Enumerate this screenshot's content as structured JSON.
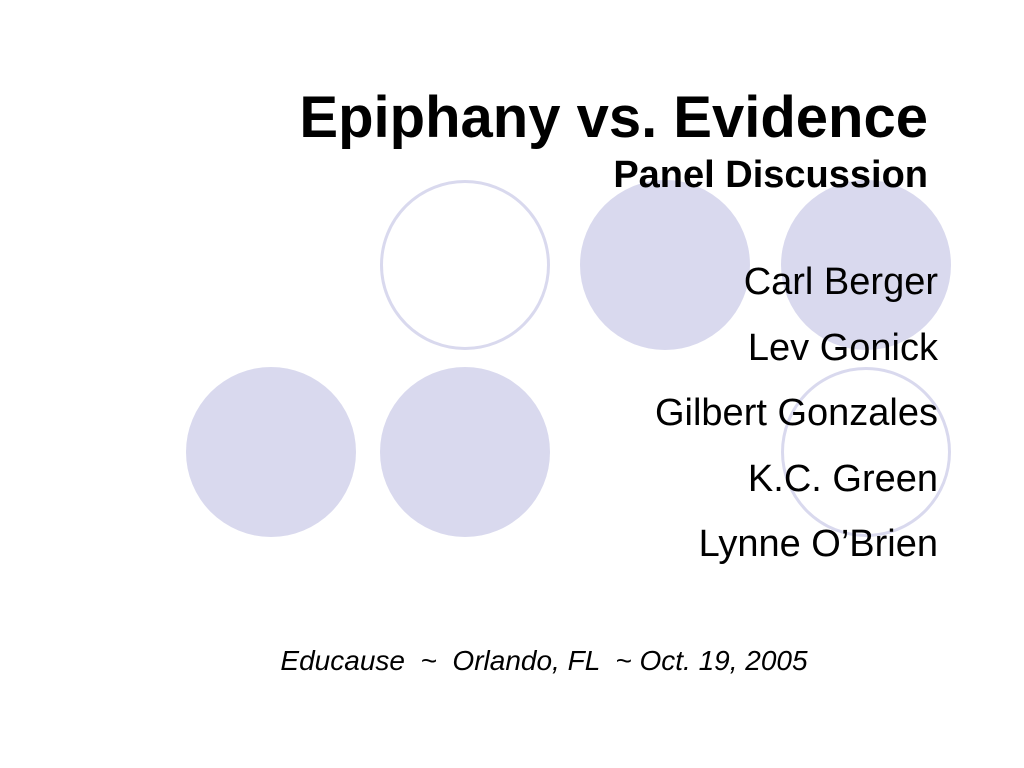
{
  "slide": {
    "title": "Epiphany vs. Evidence",
    "subtitle": "Panel Discussion",
    "panelists": [
      "Carl Berger",
      "Lev Gonick",
      "Gilbert Gonzales",
      "K.C. Green",
      "Lynne O’Brien"
    ],
    "footer": "Educause  ~  Orlando, FL  ~ Oct. 19, 2005"
  },
  "colors": {
    "circle_fill": "#d9d9ee",
    "circle_outline": "#d9d9ee",
    "text": "#000000",
    "background": "#ffffff"
  }
}
